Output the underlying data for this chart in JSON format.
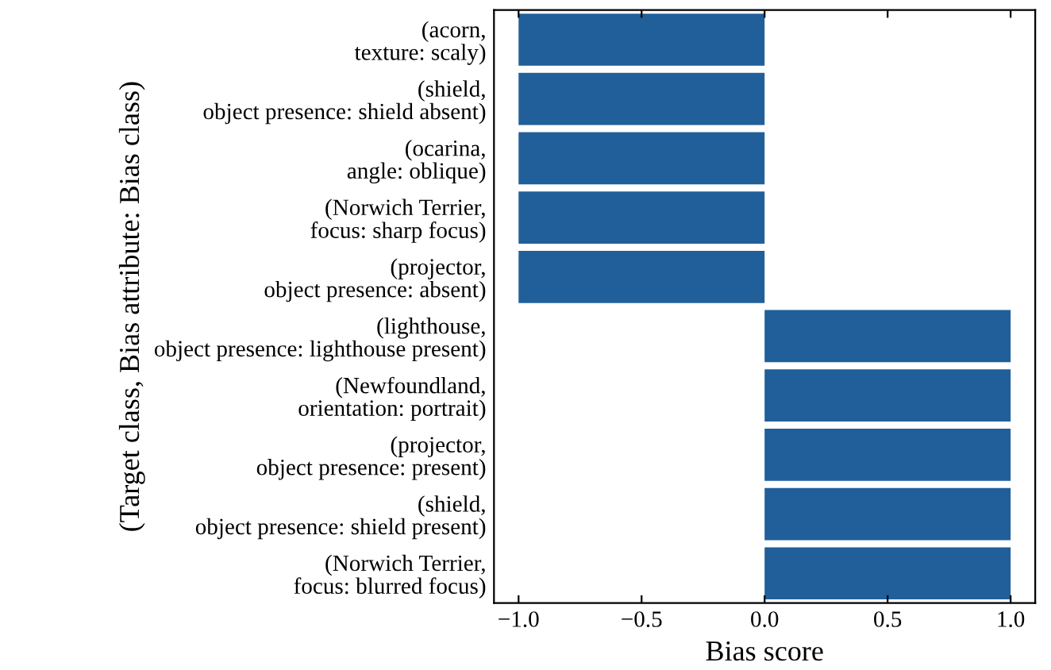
{
  "chart_data": {
    "type": "bar",
    "orientation": "horizontal",
    "xlabel": "Bias score",
    "ylabel": "(Target class, Bias attribute: Bias class)",
    "categories": [
      "(acorn,\ntexture: scaly)",
      "(shield,\nobject presence: shield absent)",
      "(ocarina,\nangle: oblique)",
      "(Norwich Terrier,\nfocus: sharp focus)",
      "(projector,\nobject presence: absent)",
      "(lighthouse,\nobject presence: lighthouse present)",
      "(Newfoundland,\norientation: portrait)",
      "(projector,\nobject presence: present)",
      "(shield,\nobject presence: shield present)",
      "(Norwich Terrier,\nfocus: blurred focus)"
    ],
    "values": [
      -1,
      -1,
      -1,
      -1,
      -1,
      1,
      1,
      1,
      1,
      1
    ],
    "color": "#215f9a",
    "xlim": [
      -1.1,
      1.1
    ],
    "xticks": [
      {
        "value": -1.0,
        "label": "−1.0"
      },
      {
        "value": -0.5,
        "label": "−0.5"
      },
      {
        "value": 0.0,
        "label": "0.0"
      },
      {
        "value": 0.5,
        "label": "0.5"
      },
      {
        "value": 1.0,
        "label": "1.0"
      }
    ],
    "grid": false,
    "legend": false
  }
}
